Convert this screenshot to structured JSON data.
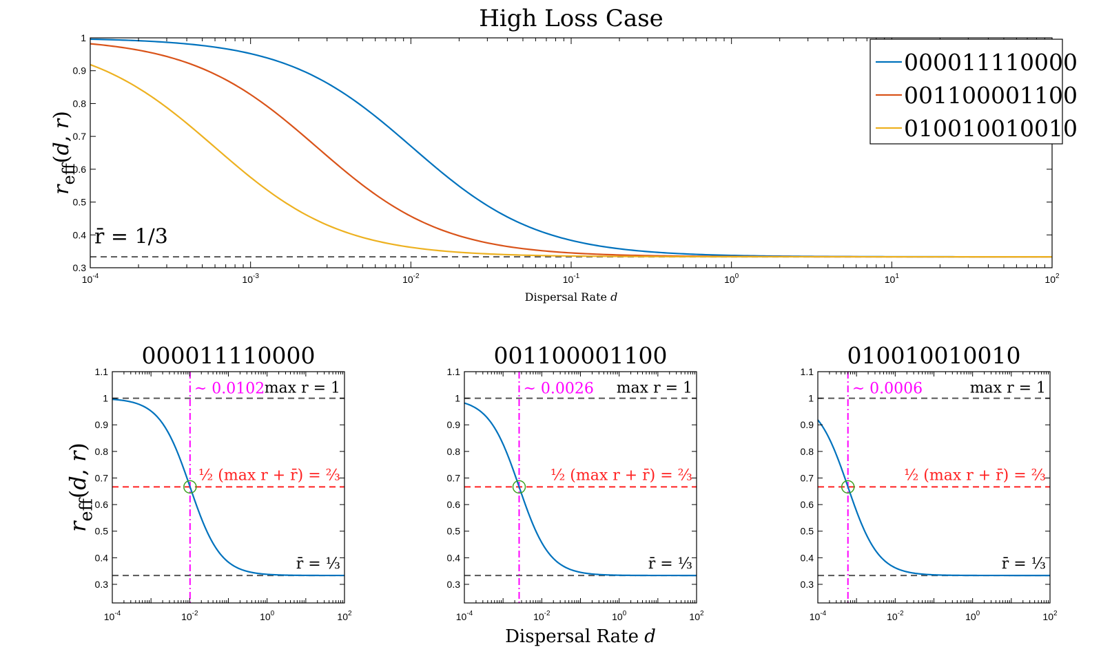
{
  "chart_data": [
    {
      "id": "top",
      "type": "line",
      "title": "High Loss Case",
      "xlabel": "Dispersal Rate",
      "xlabel_var": "d",
      "ylabel": "r_eff(d, r)",
      "xscale": "log",
      "xlim": [
        0.0001,
        100
      ],
      "ylim": [
        0.3,
        1.0
      ],
      "yticks": [
        "0.3",
        "0.4",
        "0.5",
        "0.6",
        "0.7",
        "0.8",
        "0.9",
        "1"
      ],
      "xticks": [
        "-4",
        "-3",
        "-2",
        "-1",
        "0",
        "1",
        "2"
      ],
      "legend": [
        "000011110000",
        "001100001100",
        "010010010010"
      ],
      "series": [
        {
          "name": "000011110000",
          "color": "#0072BD",
          "midpoint": 0.0102
        },
        {
          "name": "001100001100",
          "color": "#D95319",
          "midpoint": 0.0026
        },
        {
          "name": "010010010010",
          "color": "#EDB120",
          "midpoint": 0.0006
        }
      ],
      "asymptote": 0.3333,
      "annotation": "r̄ = 1/3"
    },
    {
      "id": "sub1",
      "type": "line",
      "title": "000011110000",
      "xscale": "log",
      "xlim": [
        0.0001,
        100
      ],
      "ylim": [
        0.23,
        1.1
      ],
      "yticks": [
        "0.3",
        "0.4",
        "0.5",
        "0.6",
        "0.7",
        "0.8",
        "0.9",
        "1",
        "1.1"
      ],
      "xticks": [
        "-4",
        "-2",
        "0",
        "2"
      ],
      "midpoint": 0.0102,
      "midpoint_label": "~ 0.0102",
      "max_label": "max r = 1",
      "half_label": "½ (max r + r̄) = ⅔",
      "mean_label": "r̄ = ⅓",
      "color": "#0072BD"
    },
    {
      "id": "sub2",
      "type": "line",
      "title": "001100001100",
      "xscale": "log",
      "xlim": [
        0.0001,
        100
      ],
      "ylim": [
        0.23,
        1.1
      ],
      "yticks": [
        "0.3",
        "0.4",
        "0.5",
        "0.6",
        "0.7",
        "0.8",
        "0.9",
        "1",
        "1.1"
      ],
      "xticks": [
        "-4",
        "-2",
        "0",
        "2"
      ],
      "midpoint": 0.0026,
      "midpoint_label": "~ 0.0026",
      "max_label": "max r = 1",
      "half_label": "½ (max r + r̄) = ⅔",
      "mean_label": "r̄ = ⅓",
      "color": "#0072BD"
    },
    {
      "id": "sub3",
      "type": "line",
      "title": "010010010010",
      "xscale": "log",
      "xlim": [
        0.0001,
        100
      ],
      "ylim": [
        0.23,
        1.1
      ],
      "yticks": [
        "0.3",
        "0.4",
        "0.5",
        "0.6",
        "0.7",
        "0.8",
        "0.9",
        "1",
        "1.1"
      ],
      "xticks": [
        "-4",
        "-2",
        "0",
        "2"
      ],
      "midpoint": 0.0006,
      "midpoint_label": "~ 0.0006",
      "max_label": "max r = 1",
      "half_label": "½ (max r + r̄) = ⅔",
      "mean_label": "r̄ = ⅓",
      "color": "#0072BD"
    }
  ],
  "bottom_xlabel": "Dispersal Rate",
  "bottom_xlabel_var": "d",
  "bottom_ylabel": "r_eff(d, r)",
  "tick_base": "10"
}
